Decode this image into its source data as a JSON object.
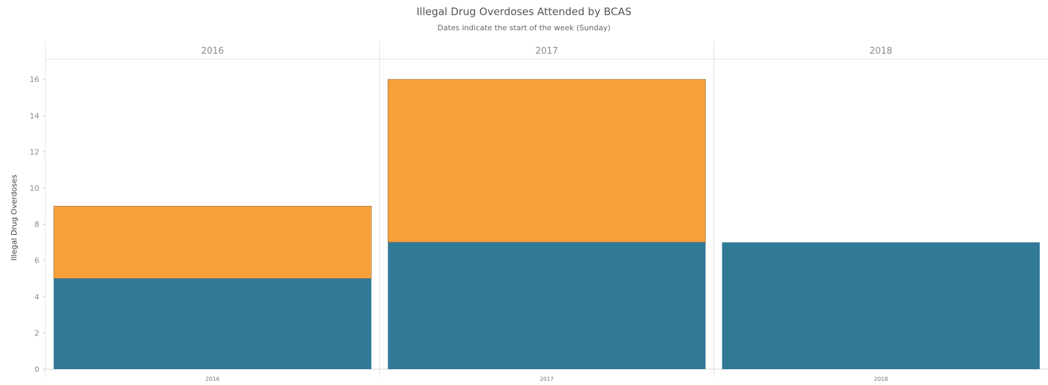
{
  "chart_data": {
    "type": "bar",
    "stacked": true,
    "title": "Illegal Drug Overdoses Attended by BCAS",
    "subtitle": "Dates indicate the start of the week (Sunday)",
    "ylabel": "Illegal Drug Overdoses",
    "xlabel": "",
    "ylim": [
      0,
      17
    ],
    "yticks": [
      0,
      2,
      4,
      6,
      8,
      10,
      12,
      14,
      16
    ],
    "panels": [
      "2016",
      "2017",
      "2018"
    ],
    "categories": [
      "2016",
      "2017",
      "2018"
    ],
    "series": [
      {
        "values": [
          5,
          7,
          7
        ],
        "color": "#317a96"
      },
      {
        "values": [
          4,
          9,
          0
        ],
        "color": "#f9a03a"
      }
    ],
    "grid": false,
    "legend": "none"
  }
}
